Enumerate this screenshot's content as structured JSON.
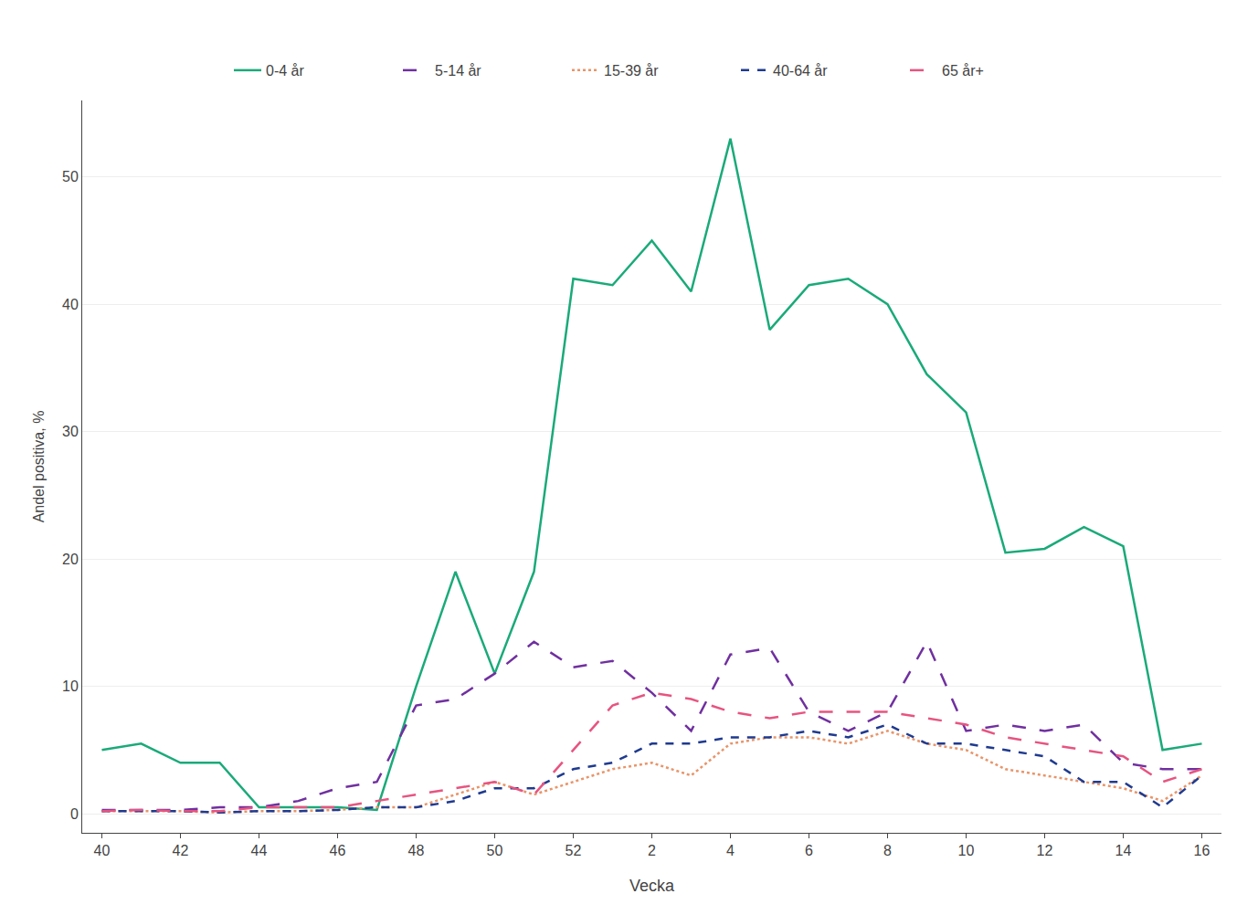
{
  "chart_data": {
    "type": "line",
    "xlabel": "Vecka",
    "ylabel": "Andel positiva, %",
    "categories": [
      "40",
      null,
      "42",
      null,
      "44",
      null,
      "46",
      null,
      "48",
      null,
      "50",
      null,
      "52",
      null,
      "2",
      null,
      "4",
      null,
      "6",
      null,
      "8",
      null,
      "10",
      null,
      "12",
      null,
      "14",
      null,
      "16"
    ],
    "series": [
      {
        "name": "0-4 år",
        "color": "#1aaa7a",
        "line_style": "solid",
        "values": [
          5.0,
          5.5,
          4.0,
          4.0,
          0.5,
          0.5,
          0.5,
          0.3,
          10.0,
          19.0,
          11.0,
          19.0,
          42.0,
          41.5,
          45.0,
          41.0,
          53.0,
          38.0,
          41.5,
          42.0,
          40.0,
          34.5,
          31.5,
          20.5,
          20.8,
          22.5,
          21.0,
          5.0,
          5.5
        ]
      },
      {
        "name": "5-14 år",
        "color": "#7030a0",
        "line_style": "longdash",
        "values": [
          0.3,
          0.3,
          0.3,
          0.5,
          0.5,
          1.0,
          2.0,
          2.5,
          8.5,
          9.0,
          11.0,
          13.5,
          11.5,
          12.0,
          9.5,
          6.5,
          12.5,
          13.0,
          8.0,
          6.5,
          8.0,
          13.5,
          6.5,
          7.0,
          6.5,
          7.0,
          4.0,
          3.5,
          3.5
        ]
      },
      {
        "name": "15-39 år",
        "color": "#e8956a",
        "line_style": "dot",
        "values": [
          0.2,
          0.2,
          0.2,
          0.1,
          0.2,
          0.2,
          0.3,
          0.5,
          0.5,
          1.5,
          2.5,
          1.5,
          2.5,
          3.5,
          4.0,
          3.0,
          5.5,
          6.0,
          6.0,
          5.5,
          6.5,
          5.5,
          5.0,
          3.5,
          3.0,
          2.5,
          2.0,
          1.0,
          3.0
        ]
      },
      {
        "name": "40-64 år",
        "color": "#1f3a8f",
        "line_style": "dash",
        "values": [
          0.2,
          0.2,
          0.2,
          0.1,
          0.2,
          0.2,
          0.3,
          0.5,
          0.5,
          1.0,
          2.0,
          2.0,
          3.5,
          4.0,
          5.5,
          5.5,
          6.0,
          6.0,
          6.5,
          6.0,
          7.0,
          5.5,
          5.5,
          5.0,
          4.5,
          2.5,
          2.5,
          0.5,
          3.0
        ]
      },
      {
        "name": "65 år+",
        "color": "#e75480",
        "line_style": "longdash",
        "values": [
          0.2,
          0.3,
          0.2,
          0.2,
          0.5,
          0.5,
          0.5,
          1.0,
          1.5,
          2.0,
          2.5,
          1.5,
          5.0,
          8.5,
          9.5,
          9.0,
          8.0,
          7.5,
          8.0,
          8.0,
          8.0,
          7.5,
          7.0,
          6.0,
          5.5,
          5.0,
          4.5,
          2.5,
          3.5
        ]
      }
    ],
    "ylim": [
      -1.5,
      56
    ],
    "yticks": [
      0,
      10,
      20,
      30,
      40,
      50
    ],
    "grid": true,
    "legend": "top"
  }
}
